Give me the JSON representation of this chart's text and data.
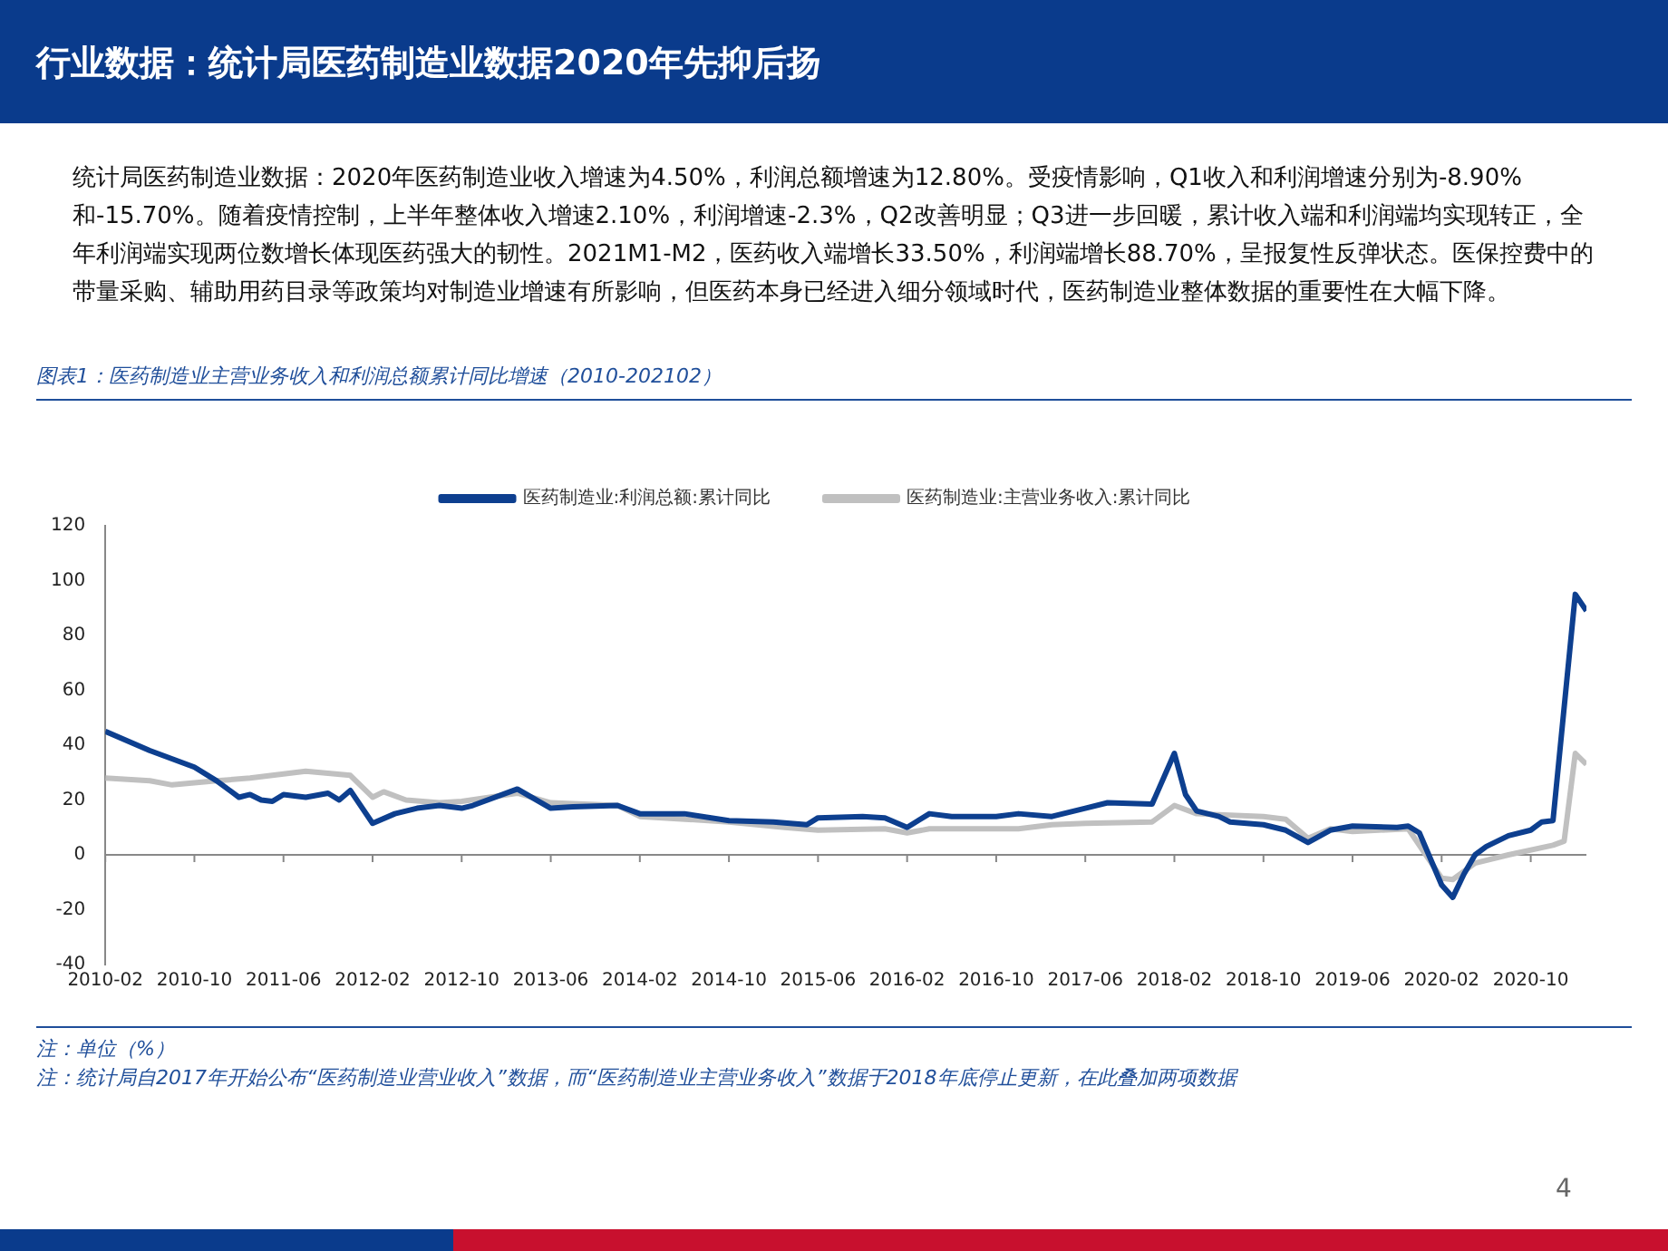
{
  "chart_data": {
    "type": "line",
    "title": "行业数据：统计局医药制造业数据2020年先抑后扬",
    "subtitle": "统计局医药制造业数据：2020年医药制造业收入增速为4.50%，利润总额增速为12.80%。受疫情影响，Q1收入和利润增速分别为-8.90%和-15.70%。随着疫情控制，上半年整体收入增速2.10%，利润增速-2.3%，Q2改善明显；Q3进一步回暖，累计收入端和利润端均实现转正，全年利润端实现两位数增长体现医药强大的韧性。2021M1-M2，医药收入端增长33.50%，利润端增长88.70%，呈报复性反弹状态。医保控费中的带量采购、辅助用药目录等政策均对制造业增速有所影响，但医药本身已经进入细分领域时代，医药制造业整体数据的重要性在大幅下降。",
    "annotations": [
      "图表1：医药制造业主营业务收入和利润总额累计同比增速（2010-202102）",
      "注：单位（%）",
      "注：统计局自2017年开始公布“医药制造业营业收入”数据，而“医药制造业主营业务收入”数据于2018年底停止更新，在此叠加两项数据",
      "4"
    ],
    "series": [
      {
        "name": "医药制造业:利润总额:累计同比",
        "color": "#0d3f8f",
        "x": [
          "2010-02",
          "2010-06",
          "2010-10",
          "2010-12",
          "2011-02",
          "2011-03",
          "2011-04",
          "2011-05",
          "2011-06",
          "2011-08",
          "2011-10",
          "2011-11",
          "2011-12",
          "2012-02",
          "2012-04",
          "2012-06",
          "2012-08",
          "2012-10",
          "2012-11",
          "2013-03",
          "2013-06",
          "2013-08",
          "2013-12",
          "2014-02",
          "2014-06",
          "2014-10",
          "2015-02",
          "2015-05",
          "2015-06",
          "2015-10",
          "2015-12",
          "2016-02",
          "2016-04",
          "2016-06",
          "2016-10",
          "2016-12",
          "2017-03",
          "2017-06",
          "2017-08",
          "2017-12",
          "2018-02",
          "2018-03",
          "2018-04",
          "2018-06",
          "2018-07",
          "2018-10",
          "2018-12",
          "2019-02",
          "2019-04",
          "2019-06",
          "2019-10",
          "2019-11",
          "2019-12",
          "2020-02",
          "2020-03",
          "2020-04",
          "2020-05",
          "2020-06",
          "2020-08",
          "2020-10",
          "2020-11",
          "2020-12",
          "2021-02",
          "2021-03"
        ],
        "values": [
          45,
          38,
          32,
          27,
          21,
          22,
          20,
          19.5,
          22,
          21,
          22.5,
          20,
          23.5,
          11.5,
          15,
          17,
          18,
          17,
          18,
          24,
          17,
          17.5,
          18,
          15,
          15,
          12.5,
          12,
          11,
          13.5,
          14,
          13.5,
          10,
          15,
          14,
          14,
          15,
          14,
          17,
          19,
          18.5,
          37,
          22,
          16,
          14,
          12,
          11,
          9,
          4.5,
          9,
          10.5,
          10,
          10.5,
          8,
          -11,
          -15.5,
          -7,
          0,
          3,
          7,
          9,
          12,
          12.5,
          95,
          89
        ]
      },
      {
        "name": "医药制造业:主营业务收入:累计同比",
        "color": "#c0c0c0",
        "x": [
          "2010-02",
          "2010-06",
          "2010-08",
          "2010-12",
          "2011-03",
          "2011-06",
          "2011-08",
          "2011-12",
          "2012-02",
          "2012-03",
          "2012-05",
          "2012-08",
          "2012-10",
          "2013-03",
          "2013-06",
          "2013-12",
          "2014-02",
          "2014-10",
          "2015-03",
          "2015-06",
          "2015-12",
          "2016-02",
          "2016-04",
          "2016-12",
          "2017-03",
          "2017-06",
          "2017-12",
          "2018-02",
          "2018-04",
          "2018-10",
          "2018-12",
          "2019-02",
          "2019-04",
          "2019-06",
          "2019-11",
          "2020-02",
          "2020-03",
          "2020-05",
          "2020-08",
          "2020-12",
          "2021-01",
          "2021-02",
          "2021-03"
        ],
        "values": [
          28,
          27,
          25.5,
          27,
          28,
          29.5,
          30.5,
          29,
          21,
          23,
          20,
          19,
          19.5,
          22.5,
          19,
          18,
          14,
          12,
          10,
          9,
          9.5,
          8,
          9.5,
          9.5,
          11,
          11.5,
          12,
          18,
          15,
          14,
          13,
          6,
          9.5,
          8.5,
          9.5,
          -8.5,
          -9,
          -3,
          0,
          3.5,
          5,
          37,
          33
        ]
      }
    ],
    "xlim": [
      "2010-02",
      "2021-03"
    ],
    "xticks": [
      "2010-02",
      "2010-10",
      "2011-06",
      "2012-02",
      "2012-10",
      "2013-06",
      "2014-02",
      "2014-10",
      "2015-06",
      "2016-02",
      "2016-10",
      "2017-06",
      "2018-02",
      "2018-10",
      "2019-06",
      "2020-02",
      "2020-10"
    ],
    "ylim": [
      -40,
      120
    ],
    "yticks": [
      -40,
      -20,
      0,
      20,
      40,
      60,
      80,
      100,
      120
    ],
    "ref_lines": [
      {
        "axis": "y",
        "value": 0,
        "color": "#888888"
      }
    ],
    "legend": "top",
    "grid": false,
    "marker": "none"
  }
}
